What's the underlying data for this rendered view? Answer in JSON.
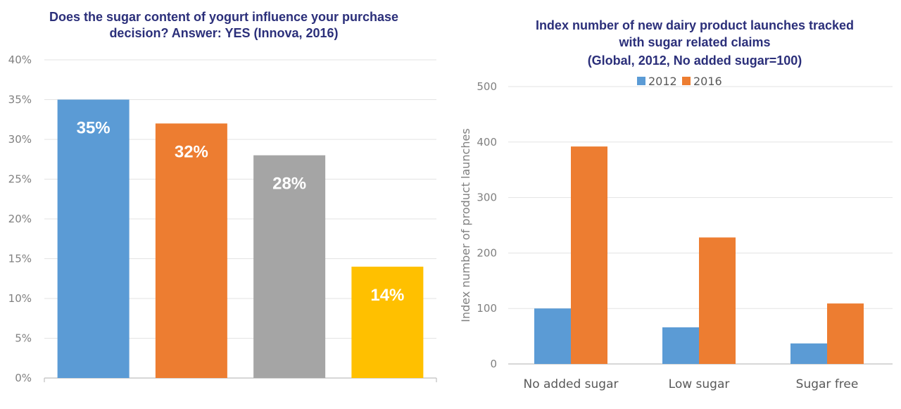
{
  "chart_data": [
    {
      "type": "bar",
      "title_lines": [
        "Does the sugar content of yogurt influence your purchase",
        "decision? Answer: YES (Innova, 2016)"
      ],
      "categories": [
        "",
        "",
        "",
        ""
      ],
      "values": [
        35,
        32,
        28,
        14
      ],
      "data_labels": [
        "35%",
        "32%",
        "28%",
        "14%"
      ],
      "colors": [
        "#5b9bd5",
        "#ed7d31",
        "#a5a5a5",
        "#ffc000"
      ],
      "ylim": [
        0,
        40
      ],
      "yticks": [
        "0%",
        "5%",
        "10%",
        "15%",
        "20%",
        "25%",
        "30%",
        "35%",
        "40%"
      ],
      "grid": true,
      "xlabel": "",
      "ylabel": ""
    },
    {
      "type": "bar",
      "title_lines": [
        "Index number of new dairy product launches tracked",
        "with sugar related claims",
        "(Global, 2012, No added sugar=100)"
      ],
      "categories": [
        "No added sugar",
        "Low sugar",
        "Sugar free"
      ],
      "series": [
        {
          "name": "2012",
          "color": "#5b9bd5",
          "values": [
            100,
            66,
            37
          ]
        },
        {
          "name": "2016",
          "color": "#ed7d31",
          "values": [
            392,
            228,
            109
          ]
        }
      ],
      "ylim": [
        0,
        500
      ],
      "yticks": [
        "0",
        "100",
        "200",
        "300",
        "400",
        "500"
      ],
      "ylabel": "Index number of product launches",
      "xlabel": "",
      "legend": "top-center",
      "grid": true
    }
  ]
}
